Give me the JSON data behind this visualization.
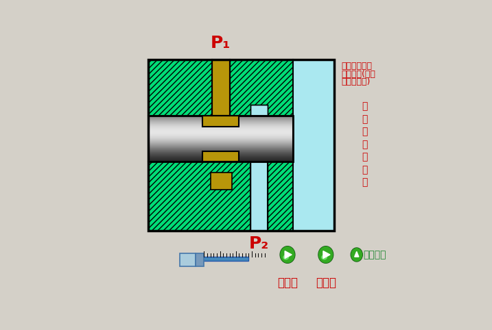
{
  "bg_color": "#d4d0c8",
  "fig_width": 7.17,
  "fig_height": 4.82,
  "green_color": "#00dd77",
  "gold_color": "#b8960a",
  "light_blue": "#aae8f0",
  "red_color": "#cc0000",
  "green_btn_color": "#33aa22",
  "label_back_color": "#228833",
  "p1_label": "P₁",
  "p2_label": "P₂",
  "text_right_1": "控制油路的接",
  "text_right_2": "通与切断(相当",
  "text_right_3": "于一个开关)",
  "vert_chars": [
    "二",
    "位",
    "二",
    "通",
    "换",
    "向",
    "閥"
  ],
  "label_pos1": "工位一",
  "label_pos2": "工位二",
  "label_back": "返回上页"
}
